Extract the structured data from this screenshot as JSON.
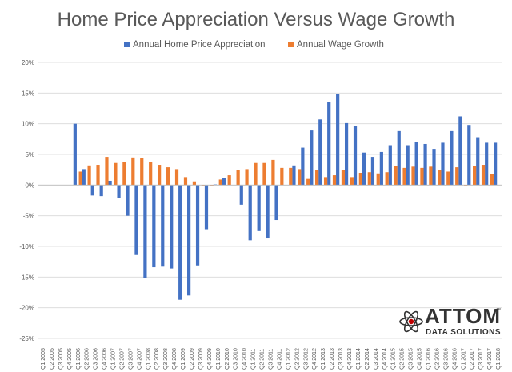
{
  "chart_data": {
    "type": "bar",
    "title": "Home Price Appreciation Versus Wage Growth",
    "xlabel": "",
    "ylabel": "",
    "ylim": [
      -25,
      20
    ],
    "y_tick_labels": [
      "-25%",
      "-20%",
      "-15%",
      "-10%",
      "-5%",
      "0%",
      "5%",
      "10%",
      "15%",
      "20%"
    ],
    "y_tick_values": [
      -25,
      -20,
      -15,
      -10,
      -5,
      0,
      5,
      10,
      15,
      20
    ],
    "grid": true,
    "legend_position": "top",
    "categories": [
      "Q1 2005",
      "Q2 2005",
      "Q3 2005",
      "Q4 2005",
      "Q1 2006",
      "Q2 2006",
      "Q3 2006",
      "Q4 2006",
      "Q1 2007",
      "Q2 2007",
      "Q3 2007",
      "Q4 2007",
      "Q1 2008",
      "Q2 2008",
      "Q3 2008",
      "Q4 2008",
      "Q1 2009",
      "Q2 2009",
      "Q3 2009",
      "Q4 2009",
      "Q1 2010",
      "Q2 2010",
      "Q3 2010",
      "Q4 2010",
      "Q1 2011",
      "Q2 2011",
      "Q3 2011",
      "Q4 2011",
      "Q1 2012",
      "Q2 2012",
      "Q3 2012",
      "Q4 2012",
      "Q1 2013",
      "Q2 2013",
      "Q3 2013",
      "Q4 2013",
      "Q1 2014",
      "Q2 2014",
      "Q3 2014",
      "Q4 2014",
      "Q1 2015",
      "Q2 2015",
      "Q3 2015",
      "Q4 2015",
      "Q1 2016",
      "Q2 2016",
      "Q3 2016",
      "Q4 2016",
      "Q1 2017",
      "Q2 2017",
      "Q3 2017",
      "Q4 2017",
      "Q1 2018"
    ],
    "series": [
      {
        "name": "Annual Home Price Appreciation",
        "color": "#4472C4",
        "values": [
          null,
          null,
          null,
          null,
          10.0,
          2.6,
          -1.7,
          -1.8,
          0.7,
          -2.1,
          -5.0,
          -11.4,
          -15.2,
          -13.4,
          -13.3,
          -13.6,
          -18.7,
          -18.0,
          -13.1,
          -7.2,
          0.1,
          1.2,
          0.0,
          -3.2,
          -9.0,
          -7.5,
          -8.7,
          -5.7,
          0.0,
          3.2,
          6.1,
          8.9,
          10.7,
          13.6,
          14.9,
          10.1,
          9.6,
          5.3,
          4.6,
          5.4,
          6.5,
          8.8,
          6.5,
          7.0,
          6.7,
          5.9,
          6.9,
          8.8,
          11.2,
          9.8,
          7.8,
          6.9,
          6.9
        ]
      },
      {
        "name": "Annual Wage Growth",
        "color": "#ED7D31",
        "values": [
          null,
          null,
          null,
          null,
          2.2,
          3.2,
          3.3,
          4.6,
          3.6,
          3.7,
          4.5,
          4.4,
          3.8,
          3.3,
          2.9,
          2.6,
          1.3,
          0.6,
          -0.2,
          -0.1,
          0.9,
          1.6,
          2.4,
          2.6,
          3.6,
          3.6,
          4.1,
          2.8,
          2.8,
          2.6,
          1.0,
          2.5,
          1.3,
          1.6,
          2.4,
          1.3,
          2.0,
          2.1,
          1.9,
          2.1,
          3.1,
          2.8,
          3.0,
          2.8,
          3.0,
          2.4,
          2.2,
          2.9,
          -0.1,
          3.1,
          3.3,
          1.8,
          0.0
        ]
      }
    ]
  },
  "logo": {
    "name": "ATTOM",
    "tagline": "DATA SOLUTIONS",
    "trademark": "™",
    "color": "#333333",
    "accent_color": "#C00000"
  }
}
